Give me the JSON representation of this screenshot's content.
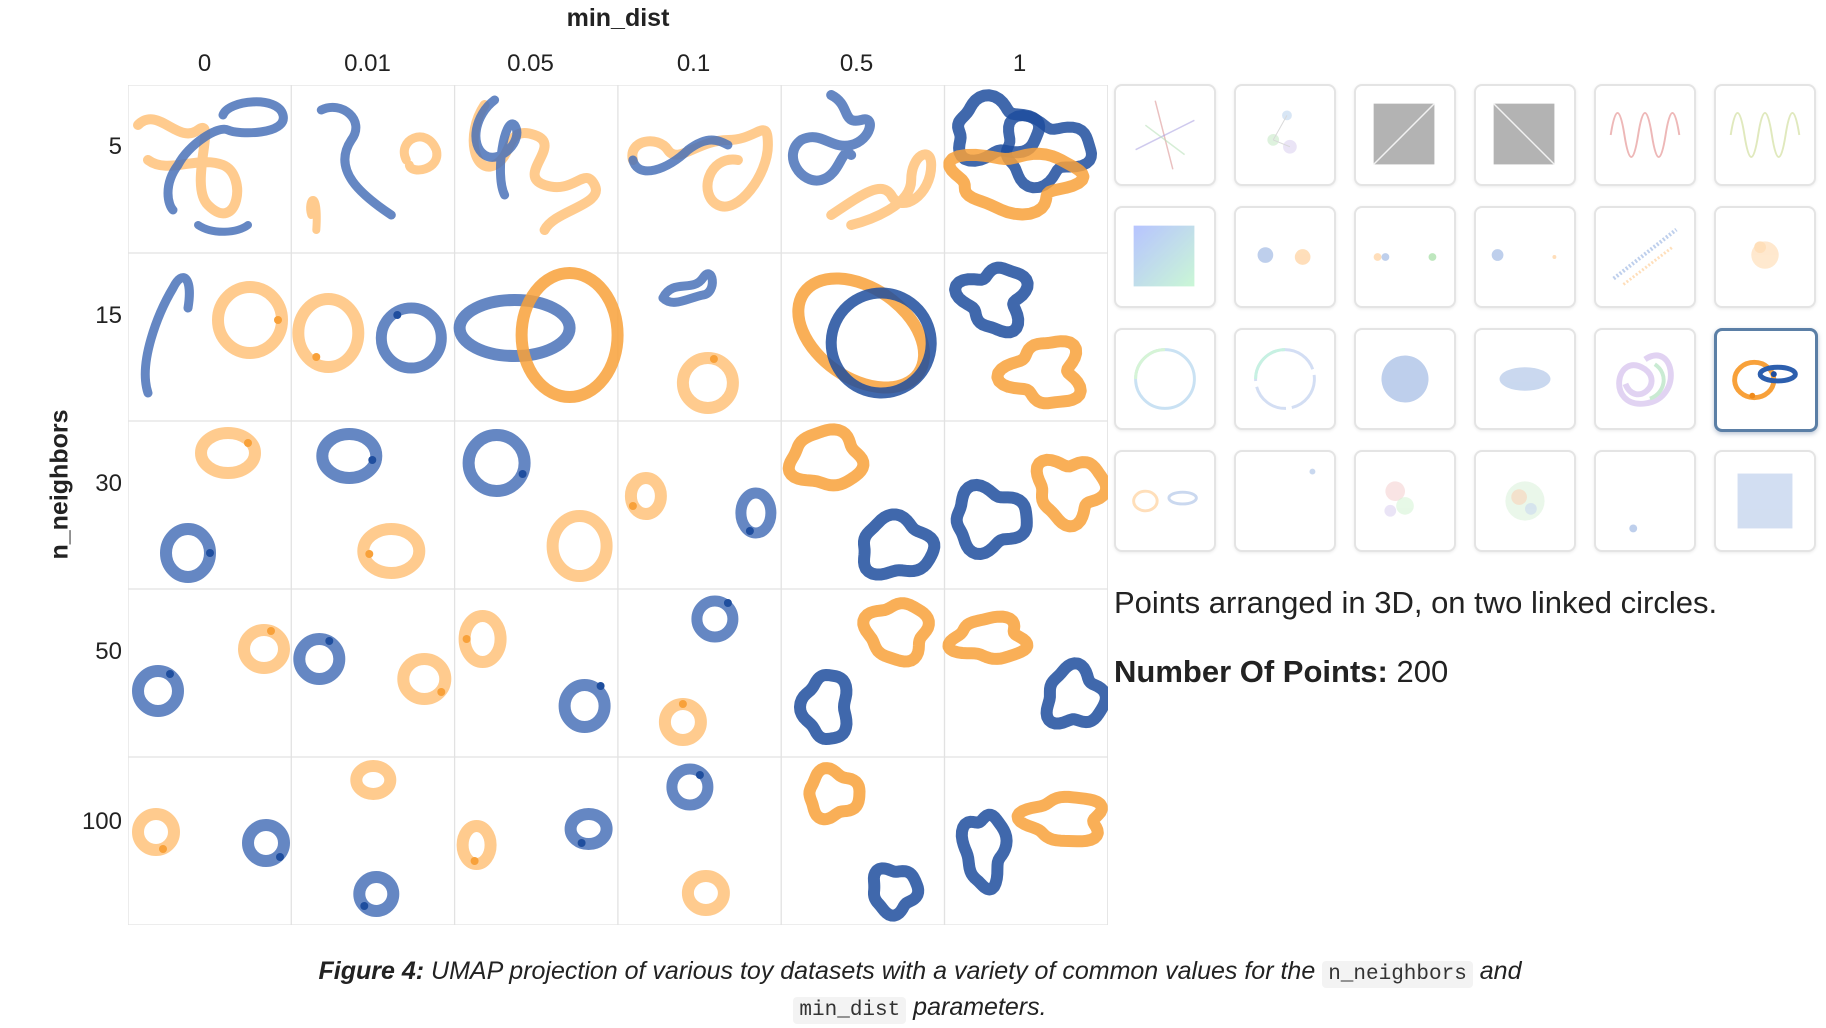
{
  "figure": {
    "x_axis_title": "min_dist",
    "y_axis_title": "n_neighbors",
    "min_dist_values": [
      "0",
      "0.01",
      "0.05",
      "0.1",
      "0.5",
      "1"
    ],
    "n_neighbors_values": [
      "5",
      "15",
      "30",
      "50",
      "100"
    ],
    "colors": {
      "blue": "#4a72b8",
      "blue_dark": "#1f4e9e",
      "orange": "#f8a13a",
      "orange_light": "#ffc27a",
      "grid_line": "#e2e2e2"
    }
  },
  "dataset_picker": {
    "items": [
      {
        "name": "star-icon"
      },
      {
        "name": "linked-clusters-icon"
      },
      {
        "name": "square-grid-diagonal-icon"
      },
      {
        "name": "square-grid-antidiagonal-icon"
      },
      {
        "name": "sine-wave-red-icon"
      },
      {
        "name": "sine-wave-green-icon"
      },
      {
        "name": "color-gradient-square-icon"
      },
      {
        "name": "two-blobs-icon"
      },
      {
        "name": "three-blobs-icon"
      },
      {
        "name": "two-distant-blobs-icon"
      },
      {
        "name": "parallel-lines-icon"
      },
      {
        "name": "random-cloud-icon"
      },
      {
        "name": "rainbow-circle-icon"
      },
      {
        "name": "rainbow-circle-gap-icon"
      },
      {
        "name": "dense-blob-icon"
      },
      {
        "name": "flat-blob-icon"
      },
      {
        "name": "trefoil-knot-icon"
      },
      {
        "name": "linked-circles-icon"
      },
      {
        "name": "unlinked-circles-icon"
      },
      {
        "name": "sparse-points-icon"
      },
      {
        "name": "colored-clusters-icon"
      },
      {
        "name": "mixed-clusters-icon"
      },
      {
        "name": "far-points-icon"
      },
      {
        "name": "uniform-square-icon"
      }
    ],
    "selected_index": 17
  },
  "selected_dataset": {
    "description": "Points arranged in 3D, on two linked circles.",
    "points_label": "Number Of Points:",
    "points_value": "200"
  },
  "caption": {
    "label": "Figure 4:",
    "text_1": " UMAP projection of various toy datasets with a variety of common values for the ",
    "code_1": "n_neighbors",
    "text_2": " and",
    "code_2": "min_dist",
    "text_3": " parameters."
  }
}
